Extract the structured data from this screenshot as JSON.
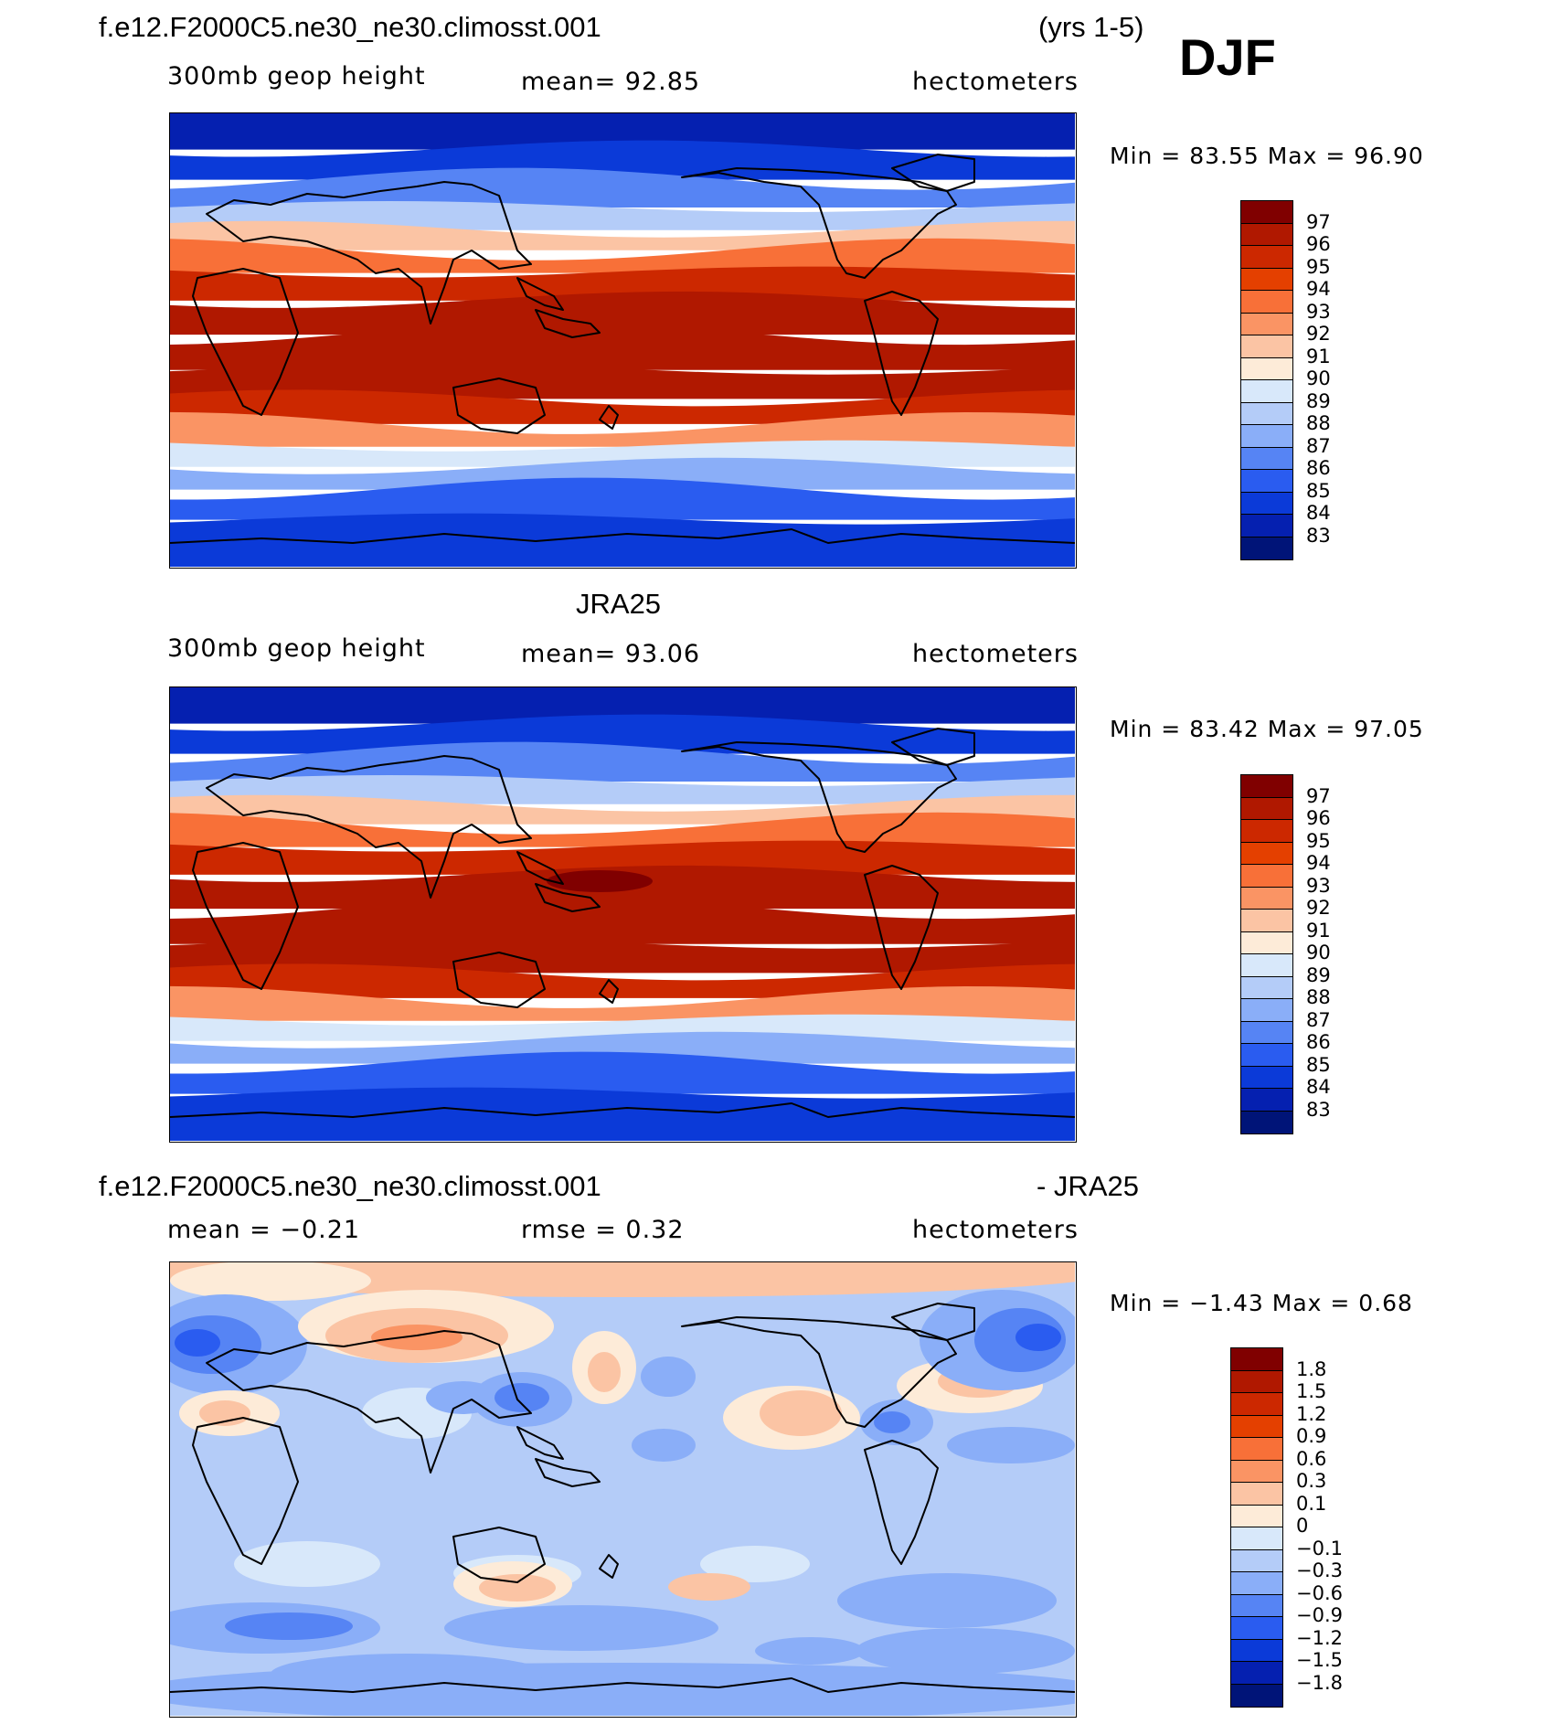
{
  "season": "DJF",
  "panels": [
    {
      "id": "model",
      "title_left": "f.e12.F2000C5.ne30_ne30.climosst.001",
      "title_right": "(yrs 1-5)",
      "sub_left": "300mb geop height",
      "sub_mid": "mean=   92.85",
      "sub_right": "hectometers",
      "minmax": "Min =   83.55  Max =   96.90",
      "levels": [
        "97",
        "96",
        "95",
        "94",
        "93",
        "92",
        "91",
        "90",
        "89",
        "88",
        "87",
        "86",
        "85",
        "84",
        "83"
      ],
      "colors": [
        "#800000",
        "#b01800",
        "#cc2800",
        "#e44000",
        "#f87038",
        "#fa9464",
        "#fbc4a4",
        "#fdebd8",
        "#d8e8fa",
        "#b4ccf8",
        "#8aaef8",
        "#5684f4",
        "#2a5cf0",
        "#0b3ad8",
        "#0520b0",
        "#001478"
      ],
      "lat_levels": [
        {
          "lat": 82,
          "v": 83.6
        },
        {
          "lat": 70,
          "v": 84.4
        },
        {
          "lat": 58,
          "v": 86.0
        },
        {
          "lat": 48,
          "v": 88.5
        },
        {
          "lat": 40,
          "v": 91.0
        },
        {
          "lat": 32,
          "v": 93.5
        },
        {
          "lat": 22,
          "v": 95.4
        },
        {
          "lat": 10,
          "v": 96.4
        },
        {
          "lat": -5,
          "v": 96.5
        },
        {
          "lat": -18,
          "v": 96.0
        },
        {
          "lat": -28,
          "v": 95.0
        },
        {
          "lat": -38,
          "v": 92.5
        },
        {
          "lat": -46,
          "v": 89.5
        },
        {
          "lat": -54,
          "v": 87.0
        },
        {
          "lat": -64,
          "v": 85.0
        },
        {
          "lat": -78,
          "v": 84.6
        }
      ]
    },
    {
      "id": "obs",
      "title_center": "JRA25",
      "sub_left": "300mb geop height",
      "sub_mid": "mean=   93.06",
      "sub_right": "hectometers",
      "minmax": "Min =   83.42  Max =   97.05",
      "levels": [
        "97",
        "96",
        "95",
        "94",
        "93",
        "92",
        "91",
        "90",
        "89",
        "88",
        "87",
        "86",
        "85",
        "84",
        "83"
      ],
      "colors": [
        "#800000",
        "#b01800",
        "#cc2800",
        "#e44000",
        "#f87038",
        "#fa9464",
        "#fbc4a4",
        "#fdebd8",
        "#d8e8fa",
        "#b4ccf8",
        "#8aaef8",
        "#5684f4",
        "#2a5cf0",
        "#0b3ad8",
        "#0520b0",
        "#001478"
      ],
      "lat_levels": [
        {
          "lat": 82,
          "v": 83.6
        },
        {
          "lat": 70,
          "v": 84.4
        },
        {
          "lat": 58,
          "v": 86.0
        },
        {
          "lat": 48,
          "v": 88.6
        },
        {
          "lat": 40,
          "v": 91.2
        },
        {
          "lat": 32,
          "v": 93.8
        },
        {
          "lat": 22,
          "v": 95.8
        },
        {
          "lat": 10,
          "v": 96.6
        },
        {
          "lat": -5,
          "v": 96.7
        },
        {
          "lat": -18,
          "v": 96.4
        },
        {
          "lat": -28,
          "v": 95.2
        },
        {
          "lat": -38,
          "v": 92.5
        },
        {
          "lat": -46,
          "v": 89.5
        },
        {
          "lat": -54,
          "v": 87.0
        },
        {
          "lat": -64,
          "v": 85.0
        },
        {
          "lat": -78,
          "v": 84.6
        }
      ]
    },
    {
      "id": "diff",
      "title_left": "f.e12.F2000C5.ne30_ne30.climosst.001",
      "title_right": "- JRA25",
      "sub_left": "mean =   −0.21",
      "sub_mid": "rmse =    0.32",
      "sub_right": "hectometers",
      "minmax": "Min =   −1.43  Max =    0.68",
      "levels": [
        "1.8",
        "1.5",
        "1.2",
        "0.9",
        "0.6",
        "0.3",
        "0.1",
        "0",
        "−0.1",
        "−0.3",
        "−0.6",
        "−0.9",
        "−1.2",
        "−1.5",
        "−1.8"
      ],
      "colors": [
        "#800000",
        "#b01800",
        "#cc2800",
        "#e44000",
        "#f87038",
        "#fa9464",
        "#fbc4a4",
        "#fdebd8",
        "#d8e8fa",
        "#b4ccf8",
        "#8aaef8",
        "#5684f4",
        "#2a5cf0",
        "#0b3ad8",
        "#0520b0",
        "#001478"
      ]
    }
  ]
}
